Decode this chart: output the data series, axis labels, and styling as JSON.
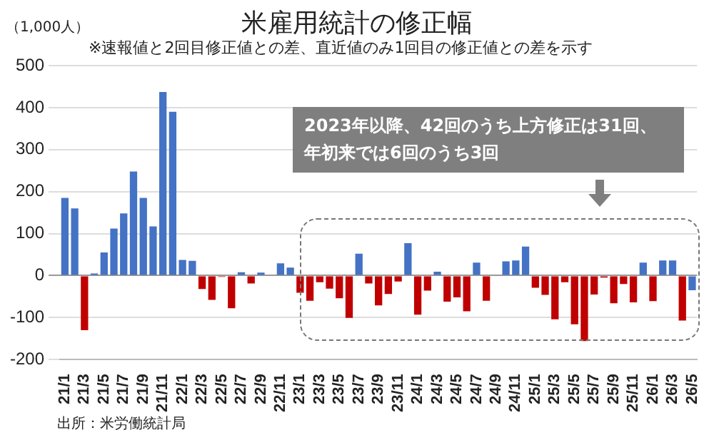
{
  "chart_data": {
    "type": "bar",
    "title": "米雇用統計の修正幅",
    "subtitle": "※速報値と2回目修正値との差、直近値のみ1回目の修正値との差を示す",
    "ylabel": "（1,000人）",
    "annotations": [
      "2023年以降、42回のうち上方修正は31回、年初来では6回のうち3回",
      "出所：米労働統計局"
    ],
    "categories": [
      "21/1",
      null,
      "21/3",
      null,
      "21/5",
      null,
      "21/7",
      null,
      "21/9",
      null,
      "21/11",
      null,
      "22/1",
      null,
      "22/3",
      null,
      "22/5",
      null,
      "22/7",
      null,
      "22/9",
      null,
      "22/11",
      null,
      "23/1",
      null,
      "23/3",
      null,
      "23/5",
      null,
      "23/7",
      null,
      "23/9",
      null,
      "23/11",
      null,
      "24/1",
      null,
      "24/3",
      null,
      "24/5",
      null,
      "24/7",
      null,
      "24/9",
      null,
      "24/11",
      null,
      "25/1",
      null,
      "25/3",
      null,
      "25/5",
      null,
      "25/7",
      null,
      "25/9",
      null,
      "25/11",
      null,
      "26/1",
      null,
      "26/3",
      null,
      "26/5"
    ],
    "values": [
      185,
      160,
      -130,
      5,
      55,
      112,
      148,
      248,
      185,
      117,
      437,
      390,
      37,
      35,
      -32,
      -58,
      -3,
      -78,
      8,
      -19,
      7,
      null,
      29,
      19,
      -41,
      -60,
      -16,
      -31,
      -54,
      -101,
      52,
      -19,
      -71,
      -44,
      -14,
      77,
      -93,
      -36,
      9,
      -62,
      -52,
      -85,
      31,
      -60,
      null,
      34,
      36,
      69,
      -29,
      -46,
      -104,
      -16,
      -116,
      -156,
      -45,
      -5,
      -66,
      -20,
      -64,
      31,
      -61,
      36,
      36,
      -107,
      -35
    ],
    "colors": [
      "#4472c4",
      "#4472c4",
      "#c00000",
      "#4472c4",
      "#4472c4",
      "#4472c4",
      "#4472c4",
      "#4472c4",
      "#4472c4",
      "#4472c4",
      "#4472c4",
      "#4472c4",
      "#4472c4",
      "#4472c4",
      "#c00000",
      "#c00000",
      "#c00000",
      "#c00000",
      "#4472c4",
      "#c00000",
      "#4472c4",
      "#4472c4",
      "#4472c4",
      "#4472c4",
      "#c00000",
      "#c00000",
      "#c00000",
      "#c00000",
      "#c00000",
      "#c00000",
      "#4472c4",
      "#c00000",
      "#c00000",
      "#c00000",
      "#c00000",
      "#4472c4",
      "#c00000",
      "#c00000",
      "#4472c4",
      "#c00000",
      "#c00000",
      "#c00000",
      "#4472c4",
      "#c00000",
      "#4472c4",
      "#4472c4",
      "#4472c4",
      "#4472c4",
      "#c00000",
      "#c00000",
      "#c00000",
      "#c00000",
      "#c00000",
      "#c00000",
      "#c00000",
      "#c00000",
      "#c00000",
      "#c00000",
      "#c00000",
      "#4472c4",
      "#c00000",
      "#4472c4",
      "#4472c4",
      "#c00000",
      "#4472c4"
    ],
    "ylim": [
      -200,
      500
    ],
    "yticks": [
      -200,
      -100,
      0,
      100,
      200,
      300,
      400,
      500
    ],
    "grid": "y",
    "legend": false
  }
}
